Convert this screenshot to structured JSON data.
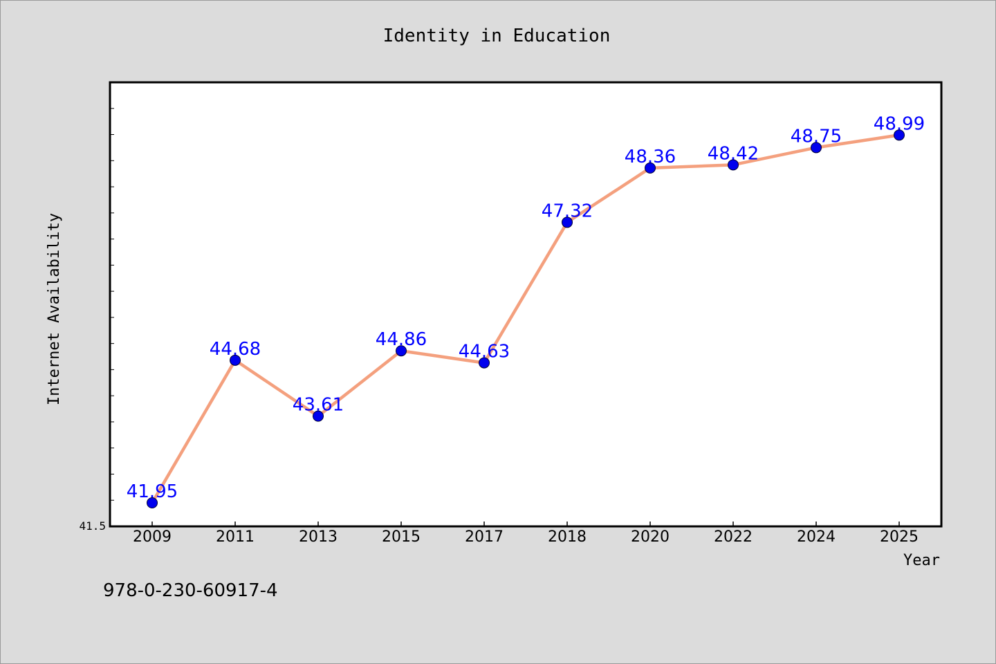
{
  "chart_data": {
    "type": "line",
    "title": "Identity in Education",
    "xlabel": "Year",
    "ylabel": "Internet Availability",
    "categories": [
      "2009",
      "2011",
      "2013",
      "2015",
      "2017",
      "2018",
      "2020",
      "2022",
      "2024",
      "2025"
    ],
    "series": [
      {
        "values": [
          41.95,
          44.68,
          43.61,
          44.86,
          44.63,
          47.32,
          48.36,
          48.42,
          48.75,
          48.99
        ],
        "labels": [
          "41.95",
          "44.68",
          "43.61",
          "44.86",
          "44.63",
          "47.32",
          "48.36",
          "48.42",
          "48.75",
          "48.99"
        ],
        "line_color": "#f4a07e",
        "marker_color": "#0000ee",
        "label_color": "#0000ff"
      }
    ],
    "y_tick_label": "41.5",
    "ylim": [
      41.5,
      50.0
    ],
    "y_minor_tick_step": 0.5,
    "grid": false
  },
  "footer": {
    "isbn": "978-0-230-60917-4"
  },
  "colors": {
    "background": "#dcdcdc",
    "plot_background": "#ffffff",
    "axis": "#000000"
  }
}
